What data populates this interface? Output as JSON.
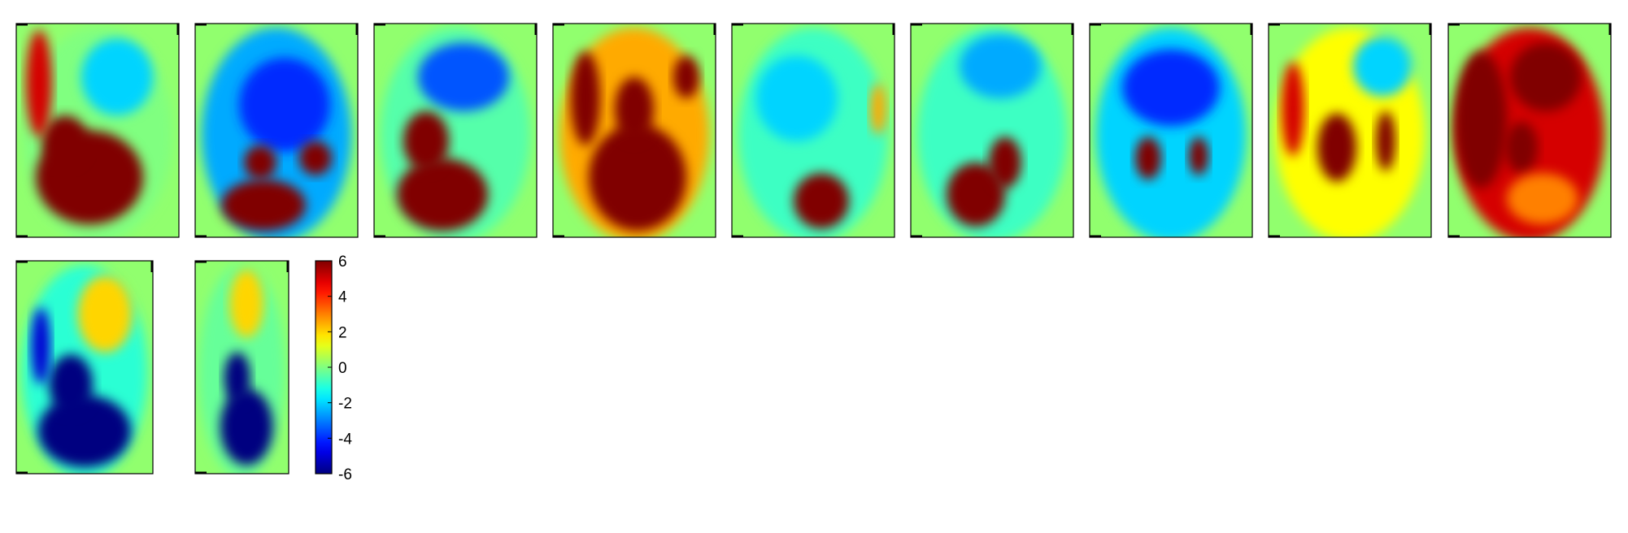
{
  "chart_data": {
    "type": "heatmap",
    "title": "",
    "colormap": "jet",
    "colorbar": {
      "range": [
        -6,
        6
      ],
      "ticks": [
        6,
        4,
        2,
        0,
        -2,
        -4,
        -6
      ],
      "tick_labels": [
        "6",
        "4",
        "2",
        "0",
        "-2",
        "-4",
        "-6"
      ]
    },
    "panels": [
      {
        "index": 1,
        "row": 1,
        "background": 0,
        "features": [
          {
            "kind": "blob",
            "value": 6,
            "cx": 0.45,
            "cy": 0.72,
            "rx": 0.33,
            "ry": 0.22
          },
          {
            "kind": "blob",
            "value": 6,
            "cx": 0.3,
            "cy": 0.55,
            "rx": 0.14,
            "ry": 0.12
          },
          {
            "kind": "blob",
            "value": 5,
            "cx": 0.14,
            "cy": 0.28,
            "rx": 0.08,
            "ry": 0.25
          },
          {
            "kind": "blob",
            "value": -2,
            "cx": 0.62,
            "cy": 0.25,
            "rx": 0.22,
            "ry": 0.18
          }
        ]
      },
      {
        "index": 2,
        "row": 1,
        "background": -2.5,
        "features": [
          {
            "kind": "blob",
            "value": -4,
            "cx": 0.55,
            "cy": 0.38,
            "rx": 0.28,
            "ry": 0.22
          },
          {
            "kind": "blob",
            "value": 6,
            "cx": 0.42,
            "cy": 0.85,
            "rx": 0.26,
            "ry": 0.12
          },
          {
            "kind": "blob",
            "value": 6,
            "cx": 0.74,
            "cy": 0.63,
            "rx": 0.1,
            "ry": 0.08
          },
          {
            "kind": "blob",
            "value": 6,
            "cx": 0.4,
            "cy": 0.65,
            "rx": 0.1,
            "ry": 0.08
          }
        ]
      },
      {
        "index": 3,
        "row": 1,
        "background": -0.5,
        "features": [
          {
            "kind": "blob",
            "value": -3.5,
            "cx": 0.55,
            "cy": 0.25,
            "rx": 0.28,
            "ry": 0.16
          },
          {
            "kind": "blob",
            "value": 6,
            "cx": 0.42,
            "cy": 0.8,
            "rx": 0.28,
            "ry": 0.17
          },
          {
            "kind": "blob",
            "value": 6,
            "cx": 0.32,
            "cy": 0.55,
            "rx": 0.14,
            "ry": 0.14
          }
        ]
      },
      {
        "index": 4,
        "row": 1,
        "background": 2.5,
        "features": [
          {
            "kind": "blob",
            "value": 6,
            "cx": 0.52,
            "cy": 0.72,
            "rx": 0.3,
            "ry": 0.25
          },
          {
            "kind": "blob",
            "value": 6,
            "cx": 0.5,
            "cy": 0.4,
            "rx": 0.12,
            "ry": 0.15
          },
          {
            "kind": "blob",
            "value": 6,
            "cx": 0.82,
            "cy": 0.25,
            "rx": 0.08,
            "ry": 0.1
          },
          {
            "kind": "blob",
            "value": 6,
            "cx": 0.2,
            "cy": 0.35,
            "rx": 0.09,
            "ry": 0.22
          }
        ]
      },
      {
        "index": 5,
        "row": 1,
        "background": -0.8,
        "features": [
          {
            "kind": "blob",
            "value": 6,
            "cx": 0.55,
            "cy": 0.83,
            "rx": 0.17,
            "ry": 0.13
          },
          {
            "kind": "blob",
            "value": 2.5,
            "cx": 0.9,
            "cy": 0.4,
            "rx": 0.05,
            "ry": 0.12
          },
          {
            "kind": "blob",
            "value": -2,
            "cx": 0.4,
            "cy": 0.35,
            "rx": 0.25,
            "ry": 0.2
          }
        ]
      },
      {
        "index": 6,
        "row": 1,
        "background": -0.8,
        "features": [
          {
            "kind": "blob",
            "value": 6,
            "cx": 0.4,
            "cy": 0.8,
            "rx": 0.18,
            "ry": 0.15
          },
          {
            "kind": "blob",
            "value": 6,
            "cx": 0.58,
            "cy": 0.65,
            "rx": 0.1,
            "ry": 0.12
          },
          {
            "kind": "blob",
            "value": -2.5,
            "cx": 0.55,
            "cy": 0.2,
            "rx": 0.25,
            "ry": 0.15
          }
        ]
      },
      {
        "index": 7,
        "row": 1,
        "background": -2,
        "features": [
          {
            "kind": "blob",
            "value": -4,
            "cx": 0.5,
            "cy": 0.3,
            "rx": 0.3,
            "ry": 0.18
          },
          {
            "kind": "blob",
            "value": 6,
            "cx": 0.36,
            "cy": 0.63,
            "rx": 0.08,
            "ry": 0.1
          },
          {
            "kind": "blob",
            "value": 6,
            "cx": 0.67,
            "cy": 0.62,
            "rx": 0.06,
            "ry": 0.09
          }
        ]
      },
      {
        "index": 8,
        "row": 1,
        "background": 1.5,
        "features": [
          {
            "kind": "blob",
            "value": 6,
            "cx": 0.42,
            "cy": 0.58,
            "rx": 0.12,
            "ry": 0.16
          },
          {
            "kind": "blob",
            "value": 6,
            "cx": 0.72,
            "cy": 0.55,
            "rx": 0.06,
            "ry": 0.14
          },
          {
            "kind": "blob",
            "value": 5,
            "cx": 0.15,
            "cy": 0.4,
            "rx": 0.07,
            "ry": 0.22
          },
          {
            "kind": "blob",
            "value": -2,
            "cx": 0.7,
            "cy": 0.2,
            "rx": 0.18,
            "ry": 0.14
          }
        ]
      },
      {
        "index": 9,
        "row": 1,
        "background": 5,
        "features": [
          {
            "kind": "blob",
            "value": 6,
            "cx": 0.2,
            "cy": 0.45,
            "rx": 0.16,
            "ry": 0.32
          },
          {
            "kind": "blob",
            "value": 6,
            "cx": 0.6,
            "cy": 0.25,
            "rx": 0.22,
            "ry": 0.16
          },
          {
            "kind": "blob",
            "value": 6,
            "cx": 0.45,
            "cy": 0.58,
            "rx": 0.1,
            "ry": 0.12
          },
          {
            "kind": "blob",
            "value": 3,
            "cx": 0.58,
            "cy": 0.82,
            "rx": 0.22,
            "ry": 0.12
          }
        ]
      },
      {
        "index": 10,
        "row": 2,
        "background": -1,
        "features": [
          {
            "kind": "blob",
            "value": -6,
            "cx": 0.5,
            "cy": 0.8,
            "rx": 0.34,
            "ry": 0.17
          },
          {
            "kind": "blob",
            "value": -6,
            "cx": 0.4,
            "cy": 0.58,
            "rx": 0.16,
            "ry": 0.14
          },
          {
            "kind": "blob",
            "value": -5,
            "cx": 0.18,
            "cy": 0.4,
            "rx": 0.07,
            "ry": 0.18
          },
          {
            "kind": "blob",
            "value": 2,
            "cx": 0.65,
            "cy": 0.25,
            "rx": 0.2,
            "ry": 0.18
          }
        ]
      },
      {
        "index": 11,
        "row": 2,
        "background": -0.3,
        "features": [
          {
            "kind": "blob",
            "value": -6,
            "cx": 0.55,
            "cy": 0.78,
            "rx": 0.28,
            "ry": 0.18
          },
          {
            "kind": "blob",
            "value": -6,
            "cx": 0.45,
            "cy": 0.55,
            "rx": 0.14,
            "ry": 0.12
          },
          {
            "kind": "blob",
            "value": 2,
            "cx": 0.55,
            "cy": 0.2,
            "rx": 0.18,
            "ry": 0.16
          }
        ]
      }
    ]
  }
}
